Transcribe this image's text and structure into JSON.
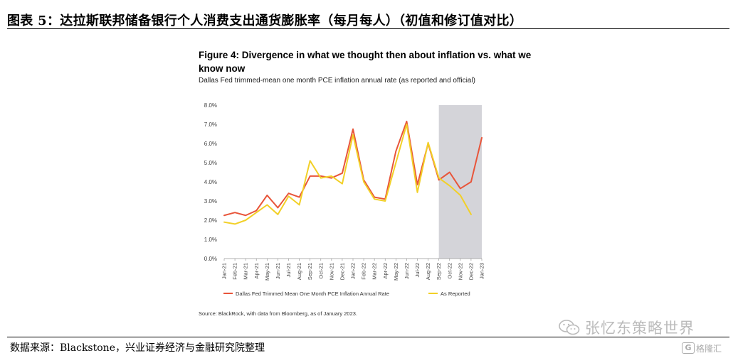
{
  "header": {
    "title": "图表 5：达拉斯联邦储备银行个人消费支出通货膨胀率（每月每人）（初值和修订值对比）"
  },
  "chart_data": {
    "type": "line",
    "title": "Figure 4: Divergence in what we thought then about inflation vs. what we know now",
    "subtitle": "Dallas Fed trimmed-mean one month PCE inflation annual rate (as reported and official)",
    "categories": [
      "Jan-21",
      "Feb-21",
      "Mar-21",
      "Apr-21",
      "May-21",
      "Jun-21",
      "Jul-21",
      "Aug-21",
      "Sep-21",
      "Oct-21",
      "Nov-21",
      "Dec-21",
      "Jan-22",
      "Feb-22",
      "Mar-22",
      "Apr-22",
      "May-22",
      "Jun-22",
      "Jul-22",
      "Aug-22",
      "Sep-22",
      "Oct-22",
      "Nov-22",
      "Dec-22",
      "Jan-23"
    ],
    "yticks": [
      "0.0%",
      "1.0%",
      "2.0%",
      "3.0%",
      "4.0%",
      "5.0%",
      "6.0%",
      "7.0%",
      "8.0%"
    ],
    "ylim": [
      0,
      8
    ],
    "y_unit": "%",
    "grid": false,
    "legend_position": "bottom",
    "shaded_region": {
      "from": "Sep-22",
      "to": "Jan-23",
      "color": "#d4d4d9"
    },
    "series": [
      {
        "name": "Dallas Fed Trimmed Mean One Month PCE Inflation Annual Rate",
        "color": "#e8553a",
        "values": [
          2.25,
          2.4,
          2.25,
          2.5,
          3.3,
          2.65,
          3.4,
          3.2,
          4.3,
          4.3,
          4.2,
          4.45,
          6.75,
          4.1,
          3.2,
          3.1,
          5.6,
          7.15,
          3.85,
          6.0,
          4.1,
          4.5,
          3.65,
          4.0,
          6.3
        ]
      },
      {
        "name": "As Reported",
        "color": "#f2d027",
        "values": [
          1.9,
          1.8,
          2.0,
          2.4,
          2.8,
          2.3,
          3.25,
          2.8,
          5.1,
          4.2,
          4.3,
          3.9,
          6.45,
          4.0,
          3.1,
          3.0,
          5.0,
          7.0,
          3.45,
          6.05,
          4.2,
          3.8,
          3.3,
          2.3,
          null
        ]
      }
    ],
    "source_note": "Source: BlackRock, with data from Bloomberg, as of January 2023."
  },
  "footer": {
    "source": "数据来源：Blackstone，兴业证券经济与金融研究院整理"
  },
  "watermark": {
    "text": "张忆东策略世界",
    "icon": "wechat-icon"
  },
  "badge": {
    "logo_glyph": "G",
    "text": "格隆汇"
  }
}
